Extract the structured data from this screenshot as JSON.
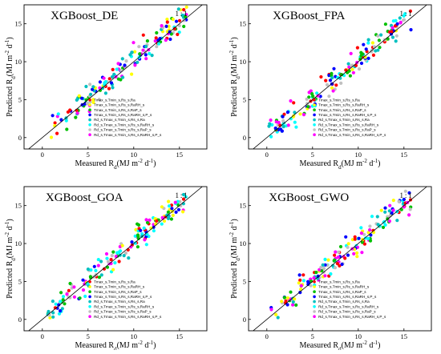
{
  "series_names": [
    "Tmax_s,Tmin_s,Rs_s,Ra",
    "Tmax_s,Tmin_s,Rs_s,RaRH_s",
    "Tmax_s,Tmin_s,Rs_s,RaP_s",
    "Tmax_s,Tmin_s,Rs_s,RaRH_s,P_s",
    "Rd_s,Tmax_s,Tmin_s,Rs_s,Ra",
    "Rd_s,Tmax_s,Tmin_s,Rs_s,RaRH_s",
    "Rd_s,Tmax_s,Tmin_s,Rs_s,RaP_s",
    "Rd_s,Tmax_s,Tmin_s,Rs_s,RaRH_s,P_s"
  ],
  "series_colors": [
    "#ff0000",
    "#ffff00",
    "#00c000",
    "#0000ff",
    "#00c0c0",
    "#00ffff",
    "#c0c0c0",
    "#ff00ff"
  ],
  "chart_data": [
    {
      "type": "scatter",
      "title": "XGBoost_DE",
      "line_label": "1 : 1",
      "xlabel": {
        "pre": "Measured R",
        "sub": "d",
        "mid": "(MJ m",
        "sup1": "-2",
        "mid2": " d",
        "sup2": "-1",
        "post": ")"
      },
      "ylabel": {
        "pre": "Predicted R",
        "sub": "d",
        "mid": "(MJ m",
        "sup1": "-2",
        "mid2": " d",
        "sup2": "-1",
        "post": ")"
      },
      "xlim": [
        -2,
        18
      ],
      "ylim": [
        -1.5,
        17.5
      ],
      "xticks": [
        0,
        5,
        10,
        15
      ],
      "yticks": [
        0,
        5,
        10,
        15
      ],
      "grid": false,
      "legend": "bottom-center",
      "reference_line": "y = x",
      "spread": 1.7,
      "seed": 11
    },
    {
      "type": "scatter",
      "title": "XGBoost_FPA",
      "line_label": "1 : 1",
      "xlabel": {
        "pre": "Measured R",
        "sub": "d",
        "mid": "(MJ m",
        "sup1": "-2",
        "mid2": " d",
        "sup2": "-1",
        "post": ")"
      },
      "ylabel": {
        "pre": "Predicted R",
        "sub": "d",
        "mid": "(MJ m",
        "sup1": "-2",
        "mid2": " d",
        "sup2": "-1",
        "post": ")"
      },
      "xlim": [
        -2,
        18
      ],
      "ylim": [
        -1.5,
        17.5
      ],
      "xticks": [
        0,
        5,
        10,
        15
      ],
      "yticks": [
        0,
        5,
        10,
        15
      ],
      "grid": false,
      "legend": "bottom-center",
      "reference_line": "y = x",
      "spread": 1.6,
      "seed": 23
    },
    {
      "type": "scatter",
      "title": "XGBoost_GOA",
      "line_label": "1 : 1",
      "xlabel": {
        "pre": "Measured R",
        "sub": "d",
        "mid": "(MJ m",
        "sup1": "-2",
        "mid2": " d",
        "sup2": "-1",
        "post": ")"
      },
      "ylabel": {
        "pre": "Predicted R",
        "sub": "d",
        "mid": "(MJ m",
        "sup1": "-2",
        "mid2": " d",
        "sup2": "-1",
        "post": ")"
      },
      "xlim": [
        -2,
        18
      ],
      "ylim": [
        -1.5,
        17.5
      ],
      "xticks": [
        0,
        5,
        10,
        15
      ],
      "yticks": [
        0,
        5,
        10,
        15
      ],
      "grid": false,
      "legend": "bottom-center",
      "reference_line": "y = x",
      "spread": 1.5,
      "seed": 37
    },
    {
      "type": "scatter",
      "title": "XGBoost_GWO",
      "line_label": "1 : 1",
      "xlabel": {
        "pre": "Measured R",
        "sub": "d",
        "mid": "(MJ m",
        "sup1": "-2",
        "mid2": " d",
        "sup2": "-1",
        "post": ")"
      },
      "ylabel": {
        "pre": "Predicted R",
        "sub": "d",
        "mid": "(MJ m",
        "sup1": "-2",
        "mid2": " d",
        "sup2": "-1",
        "post": ")"
      },
      "xlim": [
        -2,
        18
      ],
      "ylim": [
        -1.5,
        17.5
      ],
      "xticks": [
        0,
        5,
        10,
        15
      ],
      "yticks": [
        0,
        5,
        10,
        15
      ],
      "grid": false,
      "legend": "bottom-center",
      "reference_line": "y = x",
      "spread": 1.6,
      "seed": 51
    }
  ]
}
